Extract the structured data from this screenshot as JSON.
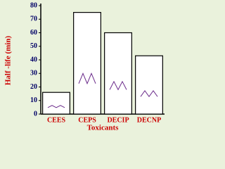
{
  "chart_data": {
    "type": "bar",
    "y_label": "Half -life (min)",
    "x_label": "Toxicants",
    "categories": [
      "CEES",
      "CEPS",
      "DECIP",
      "DECNP"
    ],
    "values": [
      16,
      75,
      60,
      43
    ],
    "color": "#ffffff",
    "edge_color": "#000000",
    "ylim": [
      0,
      80
    ],
    "yticks": [
      0,
      10,
      20,
      30,
      40,
      50,
      60,
      70,
      80
    ]
  }
}
